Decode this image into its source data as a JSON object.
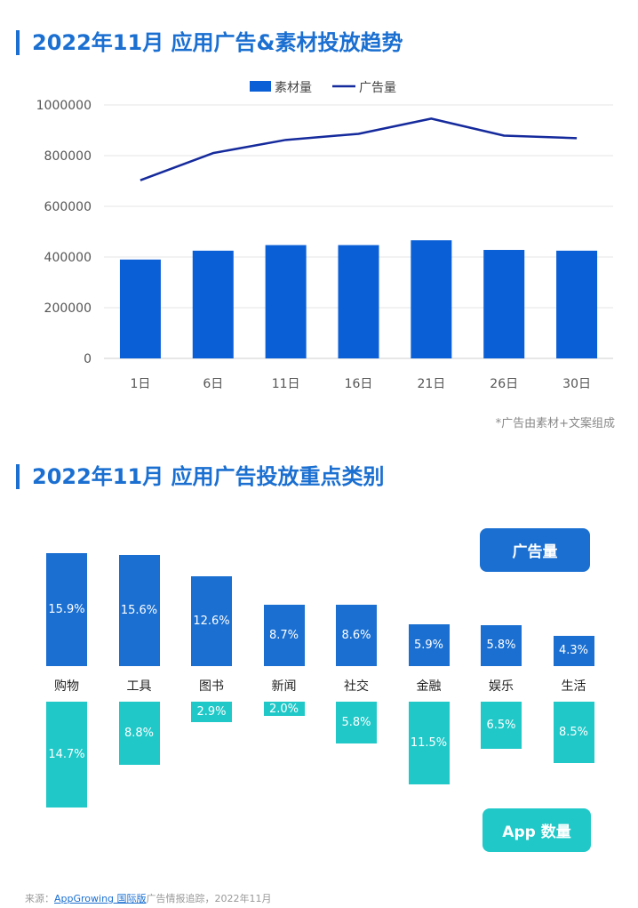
{
  "titles": {
    "trend": "2022年11月 应用广告&素材投放趋势",
    "categories": "2022年11月 应用广告投放重点类别"
  },
  "note": "*广告由素材+文案组成",
  "chart_data": [
    {
      "type": "bar",
      "title": "2022年11月 应用广告&素材投放趋势",
      "categories": [
        "1日",
        "6日",
        "11日",
        "16日",
        "21日",
        "26日",
        "30日"
      ],
      "series": [
        {
          "name": "素材量",
          "kind": "bar",
          "color": "#0a5fd6",
          "values": [
            390000,
            425000,
            447000,
            447000,
            466000,
            428000,
            425000
          ]
        },
        {
          "name": "广告量",
          "kind": "line",
          "color": "#152a9c",
          "values": [
            703000,
            810000,
            862000,
            886000,
            946000,
            879000,
            869000
          ]
        }
      ],
      "ylim": [
        0,
        1000000
      ],
      "yticks": [
        "0",
        "200000",
        "400000",
        "600000",
        "800000",
        "1000000"
      ],
      "grid": true,
      "legend": "top-center"
    },
    {
      "type": "bar",
      "title": "2022年11月 应用广告投放重点类别",
      "categories": [
        "购物",
        "工具",
        "图书",
        "新闻",
        "社交",
        "金融",
        "娱乐",
        "生活"
      ],
      "series": [
        {
          "name": "广告量",
          "color": "#1a6fd1",
          "values": [
            15.9,
            15.6,
            12.6,
            8.7,
            8.6,
            5.9,
            5.8,
            4.3
          ],
          "labels": [
            "15.9%",
            "15.6%",
            "12.6%",
            "8.7%",
            "8.6%",
            "5.9%",
            "5.8%",
            "4.3%"
          ]
        },
        {
          "name": "App 数量",
          "color": "#20c8c8",
          "values": [
            14.7,
            8.8,
            2.9,
            2.0,
            5.8,
            11.5,
            6.5,
            8.5
          ],
          "labels": [
            "14.7%",
            "8.8%",
            "2.9%",
            "2.0%",
            "5.8%",
            "11.5%",
            "6.5%",
            "8.5%"
          ]
        }
      ]
    }
  ],
  "footer": {
    "prefix": "来源：",
    "link": "AppGrowing 国际版",
    "suffix": "广告情报追踪，2022年11月"
  }
}
